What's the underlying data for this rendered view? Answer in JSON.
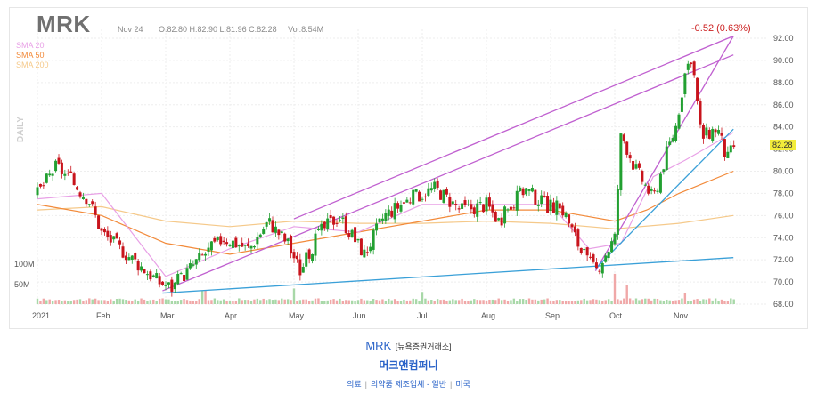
{
  "header": {
    "ticker": "MRK",
    "date": "Nov 24",
    "ohlc": "O:82.80  H:82.90  L:81.96  C:82.28",
    "volume": "Vol:8.54M",
    "change": "-0.52 (0.63%)",
    "last_price": "82.28",
    "daily_label": "DAILY"
  },
  "legend": {
    "sma20": "SMA 20",
    "sma50": "SMA 50",
    "sma200": "SMA 200"
  },
  "footer": {
    "ticker": "MRK",
    "exchange": "[뉴욕증권거래소]",
    "company": "머크앤컴퍼니",
    "categories": [
      "의료",
      "의약품 제조업체 - 일반",
      "미국"
    ]
  },
  "colors": {
    "up": "#22a031",
    "down": "#c8141c",
    "sma20": "#e8a0e6",
    "sma50": "#f28a3a",
    "sma200": "#f5c98a",
    "trend_purple": "#c060d0",
    "trend_blue": "#3aa0d8",
    "last_tag": "#f2ec3a"
  },
  "chart_data": {
    "type": "candlestick",
    "y_axis_labels": [
      "92.00",
      "90.00",
      "88.00",
      "86.00",
      "84.00",
      "82.00",
      "80.00",
      "78.00",
      "76.00",
      "74.00",
      "72.00",
      "70.00",
      "68.00"
    ],
    "ylim": [
      68,
      92
    ],
    "x_axis_labels": [
      "2021",
      "Feb",
      "Mar",
      "Apr",
      "May",
      "Jun",
      "Jul",
      "Aug",
      "Sep",
      "Oct",
      "Nov"
    ],
    "volume_labels": [
      "100M",
      "50M"
    ],
    "close_path": [
      {
        "month": 0,
        "price": 78.0
      },
      {
        "month": 0.3,
        "price": 80.5
      },
      {
        "month": 0.8,
        "price": 77.5
      },
      {
        "month": 1.0,
        "price": 74.5
      },
      {
        "month": 1.5,
        "price": 72.0
      },
      {
        "month": 1.9,
        "price": 70.0
      },
      {
        "month": 2.1,
        "price": 69.5
      },
      {
        "month": 2.5,
        "price": 72.0
      },
      {
        "month": 2.9,
        "price": 74.0
      },
      {
        "month": 3.3,
        "price": 73.0
      },
      {
        "month": 3.6,
        "price": 75.5
      },
      {
        "month": 3.9,
        "price": 73.5
      },
      {
        "month": 4.1,
        "price": 71.0
      },
      {
        "month": 4.4,
        "price": 74.5
      },
      {
        "month": 4.7,
        "price": 76.0
      },
      {
        "month": 5.1,
        "price": 72.5
      },
      {
        "month": 5.4,
        "price": 76.0
      },
      {
        "month": 5.8,
        "price": 77.5
      },
      {
        "month": 6.2,
        "price": 78.5
      },
      {
        "month": 6.6,
        "price": 76.5
      },
      {
        "month": 7.0,
        "price": 77.0
      },
      {
        "month": 7.2,
        "price": 75.5
      },
      {
        "month": 7.6,
        "price": 78.5
      },
      {
        "month": 7.9,
        "price": 77.0
      },
      {
        "month": 8.2,
        "price": 76.5
      },
      {
        "month": 8.5,
        "price": 72.5
      },
      {
        "month": 8.7,
        "price": 71.0
      },
      {
        "month": 9.0,
        "price": 74.0
      },
      {
        "month": 9.1,
        "price": 83.5
      },
      {
        "month": 9.3,
        "price": 80.5
      },
      {
        "month": 9.6,
        "price": 77.5
      },
      {
        "month": 9.8,
        "price": 81.5
      },
      {
        "month": 9.95,
        "price": 84.0
      },
      {
        "month": 10.1,
        "price": 89.0
      },
      {
        "month": 10.2,
        "price": 90.5
      },
      {
        "month": 10.35,
        "price": 83.0
      },
      {
        "month": 10.6,
        "price": 84.0
      },
      {
        "month": 10.75,
        "price": 81.0
      },
      {
        "month": 10.85,
        "price": 82.28
      }
    ],
    "volume_spikes": [
      {
        "month": 2.6,
        "volume": 28
      },
      {
        "month": 4.0,
        "volume": 32
      },
      {
        "month": 6.0,
        "volume": 25
      },
      {
        "month": 9.0,
        "volume": 62
      },
      {
        "month": 9.2,
        "volume": 40
      },
      {
        "month": 10.1,
        "volume": 22
      }
    ],
    "sma20_path": [
      [
        0,
        77.5
      ],
      [
        1,
        78
      ],
      [
        2,
        70.5
      ],
      [
        3,
        73
      ],
      [
        4,
        75
      ],
      [
        5,
        74.5
      ],
      [
        6,
        77
      ],
      [
        7,
        77
      ],
      [
        8,
        77
      ],
      [
        8.6,
        73
      ],
      [
        9.1,
        73.5
      ],
      [
        9.6,
        79.5
      ],
      [
        10.1,
        81
      ],
      [
        10.85,
        83.5
      ]
    ],
    "sma50_path": [
      [
        0,
        77
      ],
      [
        1,
        76
      ],
      [
        2,
        73.5
      ],
      [
        3,
        72.5
      ],
      [
        4,
        73.5
      ],
      [
        5,
        74.5
      ],
      [
        6,
        75.5
      ],
      [
        7,
        76.5
      ],
      [
        8,
        76.5
      ],
      [
        9,
        75.5
      ],
      [
        9.5,
        76.5
      ],
      [
        10,
        78
      ],
      [
        10.85,
        80
      ]
    ],
    "sma200_path": [
      [
        0,
        76.5
      ],
      [
        1,
        76.8
      ],
      [
        2,
        75.5
      ],
      [
        3,
        75
      ],
      [
        4,
        75.5
      ],
      [
        5,
        75.3
      ],
      [
        6,
        75.3
      ],
      [
        7,
        75.5
      ],
      [
        8,
        75.3
      ],
      [
        9,
        74.8
      ],
      [
        10,
        75.3
      ],
      [
        10.85,
        76
      ]
    ],
    "trendlines": [
      {
        "color": "purple",
        "from": [
          1.95,
          69.2
        ],
        "to": [
          10.85,
          90.5
        ]
      },
      {
        "color": "purple",
        "from": [
          4.0,
          75.7
        ],
        "to": [
          10.85,
          92.2
        ]
      },
      {
        "color": "purple",
        "from": [
          8.7,
          71.0
        ],
        "to": [
          10.85,
          92.2
        ]
      },
      {
        "color": "blue",
        "from": [
          1.95,
          69.0
        ],
        "to": [
          10.85,
          72.2
        ]
      },
      {
        "color": "blue",
        "from": [
          8.7,
          71.2
        ],
        "to": [
          10.85,
          83.8
        ]
      }
    ]
  }
}
